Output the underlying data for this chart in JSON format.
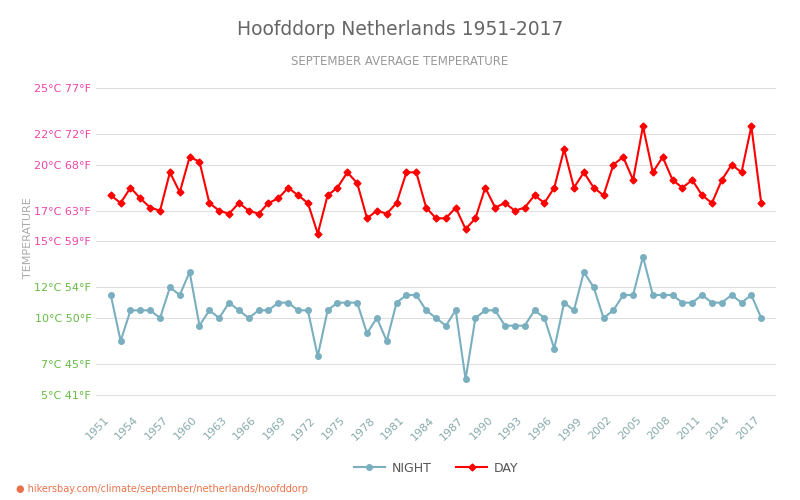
{
  "title": "Hoofddorp Netherlands 1951-2017",
  "subtitle": "SEPTEMBER AVERAGE TEMPERATURE",
  "ylabel": "TEMPERATURE",
  "title_color": "#666666",
  "subtitle_color": "#999999",
  "ylabel_color": "#aaaaaa",
  "background_color": "#ffffff",
  "grid_color": "#e0e0e0",
  "years": [
    1951,
    1952,
    1953,
    1954,
    1955,
    1956,
    1957,
    1958,
    1959,
    1960,
    1961,
    1962,
    1963,
    1964,
    1965,
    1966,
    1967,
    1968,
    1969,
    1970,
    1971,
    1972,
    1973,
    1974,
    1975,
    1976,
    1977,
    1978,
    1979,
    1980,
    1981,
    1982,
    1983,
    1984,
    1985,
    1986,
    1987,
    1988,
    1989,
    1990,
    1991,
    1992,
    1993,
    1994,
    1995,
    1996,
    1997,
    1998,
    1999,
    2000,
    2001,
    2002,
    2003,
    2004,
    2005,
    2006,
    2007,
    2008,
    2009,
    2010,
    2011,
    2012,
    2013,
    2014,
    2015,
    2016,
    2017
  ],
  "day_temps": [
    18.0,
    17.5,
    18.5,
    17.8,
    17.2,
    17.0,
    19.5,
    18.2,
    20.5,
    20.2,
    17.5,
    17.0,
    16.8,
    17.5,
    17.0,
    16.8,
    17.5,
    17.8,
    18.5,
    18.0,
    17.5,
    15.5,
    18.0,
    18.5,
    19.5,
    18.8,
    16.5,
    17.0,
    16.8,
    17.5,
    19.5,
    19.5,
    17.2,
    16.5,
    16.5,
    17.2,
    15.8,
    16.5,
    18.5,
    17.2,
    17.5,
    17.0,
    17.2,
    18.0,
    17.5,
    18.5,
    21.0,
    18.5,
    19.5,
    18.5,
    18.0,
    20.0,
    20.5,
    19.0,
    22.5,
    19.5,
    20.5,
    19.0,
    18.5,
    19.0,
    18.0,
    17.5,
    19.0,
    20.0,
    19.5,
    22.5,
    17.5
  ],
  "night_temps": [
    11.5,
    8.5,
    10.5,
    10.5,
    10.5,
    10.0,
    12.0,
    11.5,
    13.0,
    9.5,
    10.5,
    10.0,
    11.0,
    10.5,
    10.0,
    10.5,
    10.5,
    11.0,
    11.0,
    10.5,
    10.5,
    7.5,
    10.5,
    11.0,
    11.0,
    11.0,
    9.0,
    10.0,
    8.5,
    11.0,
    11.5,
    11.5,
    10.5,
    10.0,
    9.5,
    10.5,
    6.0,
    10.0,
    10.5,
    10.5,
    9.5,
    9.5,
    9.5,
    10.5,
    10.0,
    8.0,
    11.0,
    10.5,
    13.0,
    12.0,
    10.0,
    10.5,
    11.5,
    11.5,
    14.0,
    11.5,
    11.5,
    11.5,
    11.0,
    11.0,
    11.5,
    11.0,
    11.0,
    11.5,
    11.0,
    11.5,
    10.0
  ],
  "day_color": "#ff0000",
  "night_color": "#7aafc0",
  "marker_size_day": 3.5,
  "marker_size_night": 4.0,
  "line_width": 1.5,
  "yticks_c": [
    5,
    7,
    10,
    12,
    15,
    17,
    20,
    22,
    25
  ],
  "yticks_f": [
    41,
    45,
    50,
    54,
    59,
    63,
    68,
    72,
    77
  ],
  "ylim": [
    4,
    26.5
  ],
  "xlim": [
    1949.5,
    2018.5
  ],
  "legend_night": "NIGHT",
  "legend_day": "DAY",
  "watermark": "hikersbay.com/climate/september/netherlands/hoofddorp",
  "watermark_color": "#e8734a",
  "watermark_dot_color": "#e8c84a"
}
